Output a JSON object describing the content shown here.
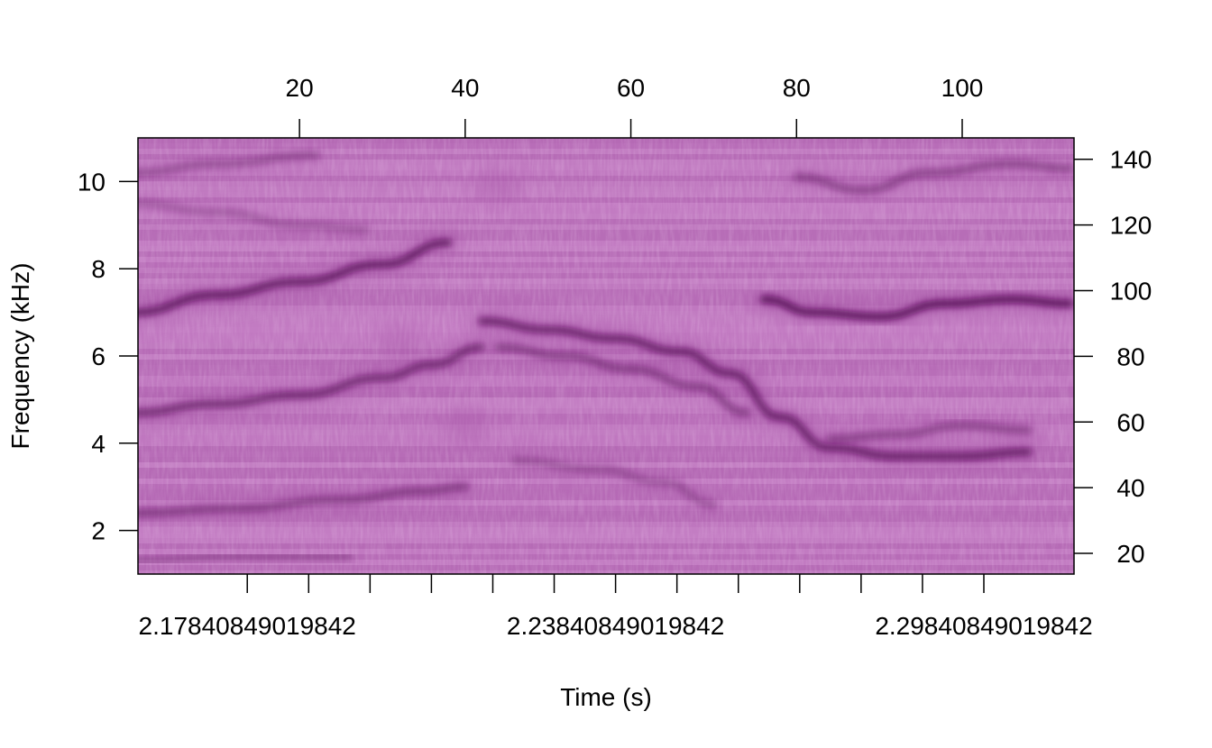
{
  "chart_data": {
    "type": "heatmap",
    "title": "",
    "xlabel": "Time (s)",
    "ylabel": "Frequency (kHz)",
    "x_bottom": {
      "tick_values": [
        2.17840849019842,
        2.18840849019842,
        2.19840849019842,
        2.20840849019842,
        2.21840849019842,
        2.22840849019842,
        2.23840849019842,
        2.24840849019842,
        2.25840849019842,
        2.26840849019842,
        2.27840849019842,
        2.28840849019842,
        2.29840849019842
      ],
      "tick_labels_shown": [
        "2.17840849019842",
        "2.23840849019842",
        "2.29840849019842"
      ],
      "label_at": [
        2.17840849019842,
        2.23840849019842,
        2.29840849019842
      ],
      "range": [
        2.1606,
        2.3131
      ]
    },
    "x_top": {
      "ticks": [
        20,
        40,
        60,
        80,
        100
      ],
      "tick_labels": [
        "20",
        "40",
        "60",
        "80",
        "100"
      ],
      "range": [
        0.5,
        113.5
      ]
    },
    "y_left": {
      "ticks": [
        2,
        4,
        6,
        8,
        10
      ],
      "tick_labels": [
        "2",
        "4",
        "6",
        "8",
        "10"
      ],
      "range": [
        1.0,
        11.0
      ]
    },
    "y_right": {
      "ticks": [
        20,
        40,
        60,
        80,
        100,
        120,
        140
      ],
      "tick_labels": [
        "20",
        "40",
        "60",
        "80",
        "100",
        "120",
        "140"
      ],
      "range": [
        13.7,
        146.5
      ]
    },
    "colormap": {
      "low": "#c77dc7",
      "mid": "#a755a7",
      "high": "#5a0a5a"
    },
    "contours": [
      {
        "kind": "harmonic",
        "points": [
          [
            0,
            7.0
          ],
          [
            10,
            7.4
          ],
          [
            20,
            7.7
          ],
          [
            30,
            8.1
          ],
          [
            38,
            8.6
          ]
        ],
        "intensity": 0.9
      },
      {
        "kind": "harmonic",
        "points": [
          [
            0,
            4.7
          ],
          [
            10,
            4.9
          ],
          [
            20,
            5.1
          ],
          [
            30,
            5.5
          ],
          [
            36,
            5.8
          ],
          [
            42,
            6.2
          ]
        ],
        "intensity": 0.75
      },
      {
        "kind": "harmonic",
        "points": [
          [
            0,
            2.4
          ],
          [
            12,
            2.5
          ],
          [
            25,
            2.7
          ],
          [
            35,
            2.9
          ],
          [
            40,
            3.0
          ]
        ],
        "intensity": 0.55
      },
      {
        "kind": "harmonic",
        "points": [
          [
            0,
            10.2
          ],
          [
            10,
            10.4
          ],
          [
            22,
            10.6
          ]
        ],
        "intensity": 0.4
      },
      {
        "kind": "harmonic",
        "points": [
          [
            0,
            9.5
          ],
          [
            10,
            9.3
          ],
          [
            20,
            9.0
          ],
          [
            28,
            8.9
          ]
        ],
        "intensity": 0.3
      },
      {
        "kind": "harmonic",
        "points": [
          [
            42,
            6.8
          ],
          [
            50,
            6.6
          ],
          [
            58,
            6.4
          ],
          [
            66,
            6.1
          ],
          [
            72,
            5.6
          ],
          [
            78,
            4.6
          ],
          [
            84,
            3.9
          ],
          [
            92,
            3.7
          ],
          [
            100,
            3.7
          ],
          [
            108,
            3.8
          ]
        ],
        "intensity": 0.85
      },
      {
        "kind": "harmonic",
        "points": [
          [
            44,
            6.2
          ],
          [
            52,
            6.0
          ],
          [
            60,
            5.7
          ],
          [
            68,
            5.3
          ],
          [
            74,
            4.7
          ]
        ],
        "intensity": 0.55
      },
      {
        "kind": "harmonic",
        "points": [
          [
            76,
            7.3
          ],
          [
            82,
            7.0
          ],
          [
            90,
            6.9
          ],
          [
            98,
            7.2
          ],
          [
            106,
            7.3
          ],
          [
            113,
            7.2
          ]
        ],
        "intensity": 1.0
      },
      {
        "kind": "harmonic",
        "points": [
          [
            80,
            10.1
          ],
          [
            88,
            9.8
          ],
          [
            96,
            10.2
          ],
          [
            106,
            10.4
          ],
          [
            113,
            10.3
          ]
        ],
        "intensity": 0.5
      },
      {
        "kind": "harmonic",
        "points": [
          [
            84,
            4.1
          ],
          [
            92,
            4.2
          ],
          [
            100,
            4.4
          ],
          [
            108,
            4.3
          ]
        ],
        "intensity": 0.5
      },
      {
        "kind": "harmonic",
        "points": [
          [
            46,
            3.6
          ],
          [
            56,
            3.4
          ],
          [
            64,
            3.1
          ],
          [
            70,
            2.6
          ]
        ],
        "intensity": 0.35
      },
      {
        "kind": "harmonic",
        "points": [
          [
            0,
            1.3
          ],
          [
            12,
            1.4
          ],
          [
            26,
            1.4
          ]
        ],
        "intensity": 0.35
      },
      {
        "kind": "blob",
        "points": [
          [
            44,
            9.9
          ]
        ],
        "intensity": 0.35
      },
      {
        "kind": "blob",
        "points": [
          [
            40,
            4.4
          ]
        ],
        "intensity": 0.35
      },
      {
        "kind": "blob",
        "points": [
          [
            32,
            6.3
          ]
        ],
        "intensity": 0.3
      }
    ]
  }
}
